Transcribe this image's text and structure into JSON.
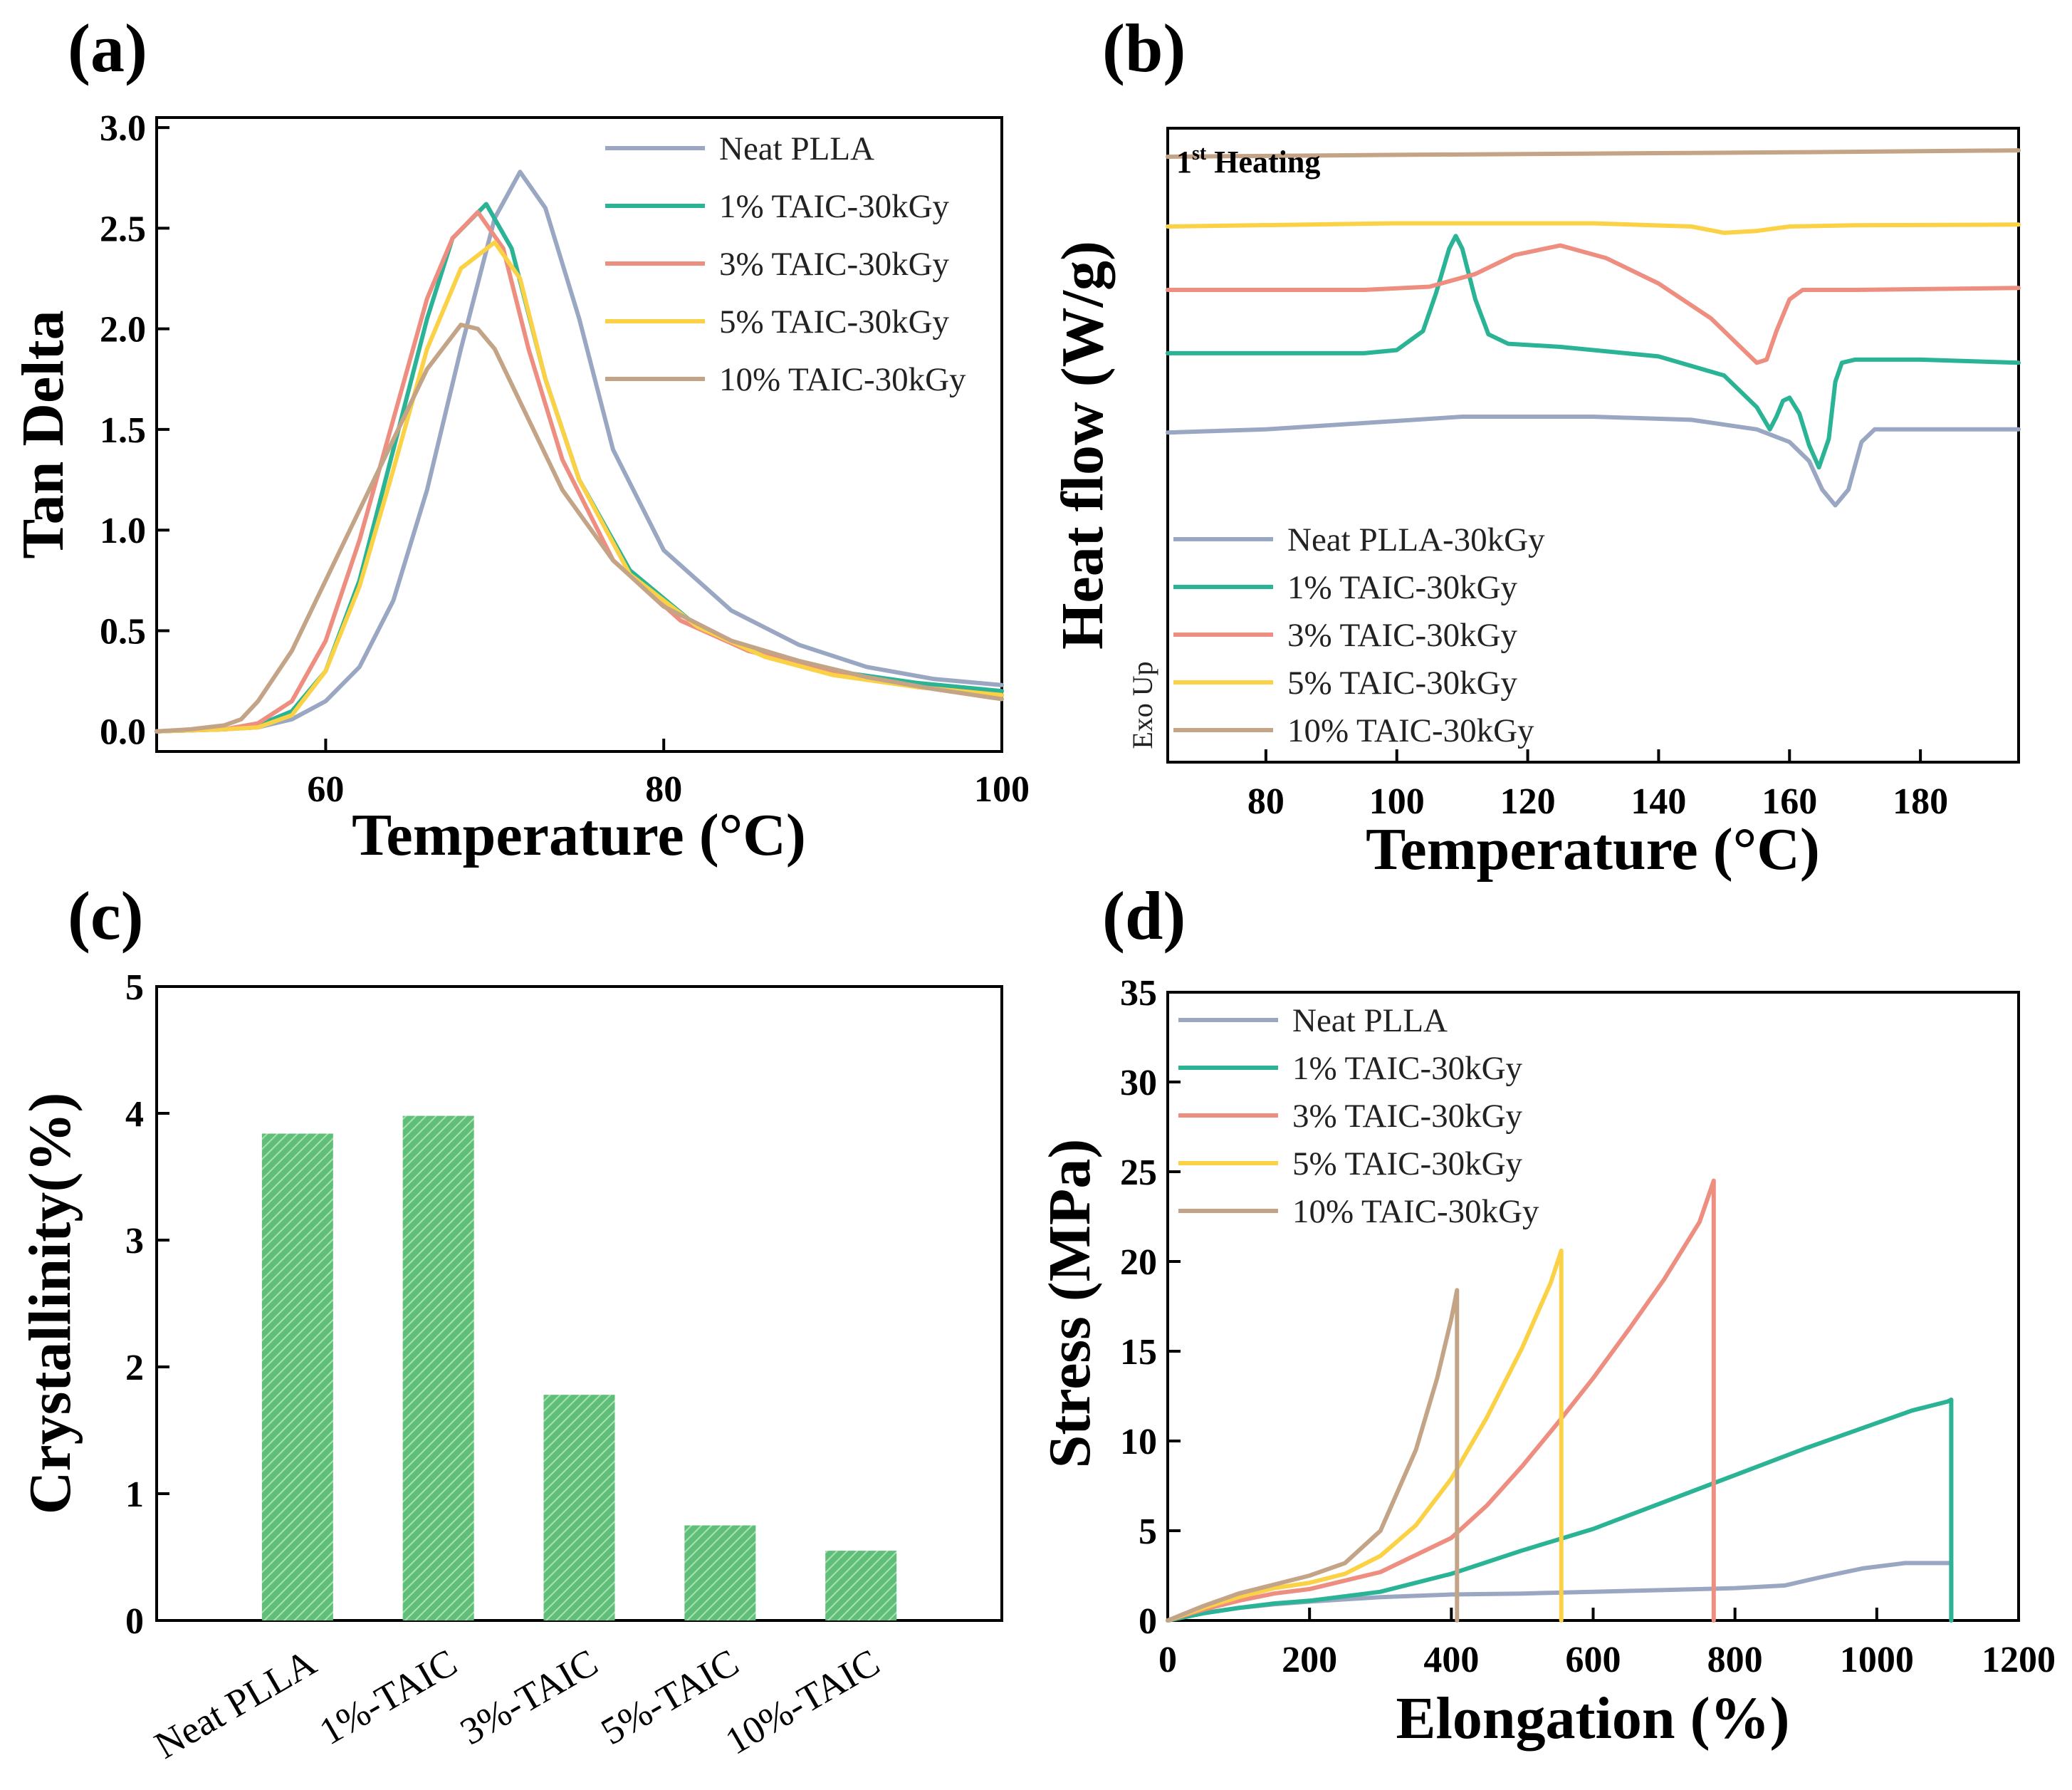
{
  "colors": {
    "neat": "#9aa7c3",
    "taic1": "#2ab394",
    "taic3": "#ee8e80",
    "taic5": "#fbd146",
    "taic10": "#c4a487",
    "bar": "#72c788"
  },
  "chart_data": [
    {
      "panel": "(a)",
      "type": "line",
      "xlabel": "Temperature (°C)",
      "ylabel": "Tan Delta",
      "xlim": [
        50,
        100
      ],
      "ylim": [
        -0.1,
        3.05
      ],
      "xticks": [
        "60",
        "80",
        "100"
      ],
      "yticks": [
        "0.0",
        "0.5",
        "1.0",
        "1.5",
        "2.0",
        "2.5",
        "3.0"
      ],
      "legend_position": "top-right",
      "series": [
        {
          "name": "Neat PLLA",
          "color_key": "neat",
          "x": [
            50,
            54,
            56,
            58,
            60,
            62,
            64,
            66,
            68,
            70,
            71.5,
            73,
            75,
            77,
            80,
            84,
            88,
            92,
            96,
            100
          ],
          "y": [
            0.0,
            0.01,
            0.02,
            0.06,
            0.15,
            0.32,
            0.65,
            1.2,
            1.9,
            2.55,
            2.78,
            2.6,
            2.05,
            1.4,
            0.9,
            0.6,
            0.43,
            0.32,
            0.26,
            0.23
          ]
        },
        {
          "name": "1% TAIC-30kGy",
          "color_key": "taic1",
          "x": [
            50,
            54,
            56,
            58,
            60,
            62,
            64,
            66,
            67.5,
            69.5,
            71,
            73,
            75,
            78,
            82,
            86,
            90,
            95,
            100
          ],
          "y": [
            0.0,
            0.01,
            0.03,
            0.1,
            0.3,
            0.75,
            1.4,
            2.05,
            2.45,
            2.62,
            2.4,
            1.75,
            1.25,
            0.8,
            0.52,
            0.38,
            0.3,
            0.24,
            0.2
          ]
        },
        {
          "name": "3% TAIC-30kGy",
          "color_key": "taic3",
          "x": [
            50,
            54,
            56,
            58,
            60,
            62,
            64,
            66,
            67.5,
            69,
            70.5,
            72,
            74,
            77,
            81,
            85,
            90,
            95,
            100
          ],
          "y": [
            0.0,
            0.01,
            0.04,
            0.15,
            0.45,
            0.95,
            1.55,
            2.15,
            2.45,
            2.58,
            2.4,
            1.9,
            1.35,
            0.85,
            0.55,
            0.4,
            0.29,
            0.22,
            0.18
          ]
        },
        {
          "name": "5% TAIC-30kGy",
          "color_key": "taic5",
          "x": [
            50,
            54,
            56,
            58,
            60,
            62,
            64,
            66,
            68,
            70,
            71.5,
            73,
            75,
            78,
            82,
            86,
            90,
            95,
            100
          ],
          "y": [
            0.0,
            0.01,
            0.02,
            0.08,
            0.3,
            0.72,
            1.3,
            1.9,
            2.3,
            2.43,
            2.25,
            1.75,
            1.25,
            0.78,
            0.52,
            0.37,
            0.28,
            0.22,
            0.18
          ]
        },
        {
          "name": "10% TAIC-30kGy",
          "color_key": "taic10",
          "x": [
            50,
            52,
            54,
            55,
            56,
            58,
            60,
            62,
            64,
            66,
            68,
            69,
            70,
            72,
            74,
            77,
            80,
            84,
            88,
            92,
            96,
            100
          ],
          "y": [
            0.0,
            0.01,
            0.03,
            0.06,
            0.15,
            0.4,
            0.75,
            1.1,
            1.45,
            1.8,
            2.02,
            2.0,
            1.9,
            1.55,
            1.2,
            0.85,
            0.62,
            0.45,
            0.35,
            0.27,
            0.21,
            0.16
          ]
        }
      ]
    },
    {
      "panel": "(b)",
      "type": "line",
      "xlabel": "Temperature (°C)",
      "ylabel": "Heat flow (W/g)",
      "annotation": "1st Heating",
      "annotation_sup": "st",
      "exo_label": "Exo Up",
      "xlim": [
        65,
        195
      ],
      "ylim": [
        0,
        10
      ],
      "xticks": [
        "80",
        "100",
        "120",
        "140",
        "160",
        "180"
      ],
      "legend_position": "bottom-left",
      "series": [
        {
          "name": "Neat PLLA-30kGy",
          "color_key": "neat",
          "x": [
            65,
            80,
            95,
            110,
            130,
            145,
            155,
            160,
            163,
            165,
            167,
            169,
            171,
            173,
            180,
            195
          ],
          "y": [
            5.2,
            5.25,
            5.35,
            5.45,
            5.45,
            5.4,
            5.25,
            5.05,
            4.75,
            4.3,
            4.05,
            4.3,
            5.05,
            5.25,
            5.25,
            5.25
          ]
        },
        {
          "name": "1% TAIC-30kGy",
          "color_key": "taic1",
          "x": [
            65,
            95,
            100,
            104,
            106,
            108,
            109,
            110,
            112,
            114,
            117,
            125,
            140,
            150,
            155,
            157,
            158,
            159,
            160,
            161.5,
            163,
            164.5,
            166,
            167,
            168,
            170,
            180,
            195
          ],
          "y": [
            6.45,
            6.45,
            6.5,
            6.8,
            7.4,
            8.1,
            8.3,
            8.1,
            7.3,
            6.75,
            6.6,
            6.55,
            6.4,
            6.1,
            5.6,
            5.25,
            5.45,
            5.7,
            5.75,
            5.5,
            5.0,
            4.65,
            5.1,
            6.0,
            6.3,
            6.35,
            6.35,
            6.3
          ]
        },
        {
          "name": "3% TAIC-30kGy",
          "color_key": "taic3",
          "x": [
            65,
            95,
            105,
            112,
            118,
            125,
            132,
            140,
            148,
            152,
            155,
            156.5,
            158,
            160,
            162,
            170,
            195
          ],
          "y": [
            7.45,
            7.45,
            7.5,
            7.7,
            8.0,
            8.15,
            7.95,
            7.55,
            7.0,
            6.6,
            6.3,
            6.35,
            6.8,
            7.3,
            7.45,
            7.45,
            7.48
          ]
        },
        {
          "name": "5% TAIC-30kGy",
          "color_key": "taic5",
          "x": [
            65,
            100,
            130,
            145,
            150,
            155,
            160,
            170,
            195
          ],
          "y": [
            8.45,
            8.5,
            8.5,
            8.45,
            8.35,
            8.38,
            8.45,
            8.47,
            8.48
          ]
        },
        {
          "name": "10% TAIC-30kGy",
          "color_key": "taic10",
          "x": [
            65,
            100,
            130,
            160,
            195
          ],
          "y": [
            9.55,
            9.58,
            9.6,
            9.62,
            9.65
          ]
        }
      ]
    },
    {
      "panel": "(c)",
      "type": "bar",
      "ylabel": "Crystallinity(%)",
      "ylim": [
        0,
        5
      ],
      "yticks": [
        "0",
        "1",
        "2",
        "3",
        "4",
        "5"
      ],
      "categories": [
        "Neat PLLA",
        "1%-TAIC",
        "3%-TAIC",
        "5%-TAIC",
        "10%-TAIC"
      ],
      "values": [
        3.84,
        3.98,
        1.78,
        0.75,
        0.55
      ]
    },
    {
      "panel": "(d)",
      "type": "line",
      "xlabel": "Elongation (%)",
      "ylabel": "Stress (MPa)",
      "xlim": [
        0,
        1200
      ],
      "ylim": [
        0,
        35
      ],
      "xticks": [
        "0",
        "200",
        "400",
        "600",
        "800",
        "1000",
        "1200"
      ],
      "yticks": [
        "0",
        "5",
        "10",
        "15",
        "20",
        "25",
        "30",
        "35"
      ],
      "legend_position": "top-left",
      "series": [
        {
          "name": "Neat PLLA",
          "color_key": "neat",
          "x": [
            0,
            50,
            100,
            150,
            200,
            300,
            400,
            500,
            600,
            700,
            800,
            870,
            920,
            980,
            1040,
            1100,
            1105,
            1105
          ],
          "y": [
            0,
            0.4,
            0.7,
            0.9,
            1.05,
            1.3,
            1.45,
            1.5,
            1.6,
            1.7,
            1.8,
            1.95,
            2.4,
            2.9,
            3.2,
            3.2,
            3.2,
            0
          ]
        },
        {
          "name": "1% TAIC-30kGy",
          "color_key": "taic1",
          "x": [
            0,
            50,
            100,
            150,
            200,
            300,
            400,
            500,
            600,
            700,
            800,
            900,
            1000,
            1050,
            1100,
            1105,
            1105
          ],
          "y": [
            0,
            0.4,
            0.7,
            0.95,
            1.1,
            1.6,
            2.6,
            3.9,
            5.1,
            6.6,
            8.1,
            9.6,
            11.0,
            11.7,
            12.2,
            12.3,
            0
          ]
        },
        {
          "name": "3% TAIC-30kGy",
          "color_key": "taic3",
          "x": [
            0,
            50,
            100,
            150,
            200,
            300,
            400,
            450,
            500,
            550,
            600,
            650,
            700,
            750,
            770,
            770
          ],
          "y": [
            0,
            0.6,
            1.1,
            1.5,
            1.75,
            2.7,
            4.6,
            6.4,
            8.6,
            11.0,
            13.5,
            16.2,
            19.0,
            22.2,
            24.5,
            0
          ]
        },
        {
          "name": "5% TAIC-30kGy",
          "color_key": "taic5",
          "x": [
            0,
            50,
            100,
            150,
            200,
            250,
            300,
            350,
            400,
            450,
            500,
            540,
            555,
            555
          ],
          "y": [
            0,
            0.7,
            1.3,
            1.8,
            2.1,
            2.6,
            3.6,
            5.3,
            7.9,
            11.3,
            15.2,
            18.8,
            20.6,
            0
          ]
        },
        {
          "name": "10% TAIC-30kGy",
          "color_key": "taic10",
          "x": [
            0,
            50,
            100,
            150,
            200,
            250,
            300,
            350,
            380,
            400,
            408,
            408
          ],
          "y": [
            0,
            0.8,
            1.5,
            2.0,
            2.5,
            3.2,
            5.0,
            9.5,
            13.5,
            16.8,
            18.4,
            0
          ]
        }
      ]
    }
  ]
}
